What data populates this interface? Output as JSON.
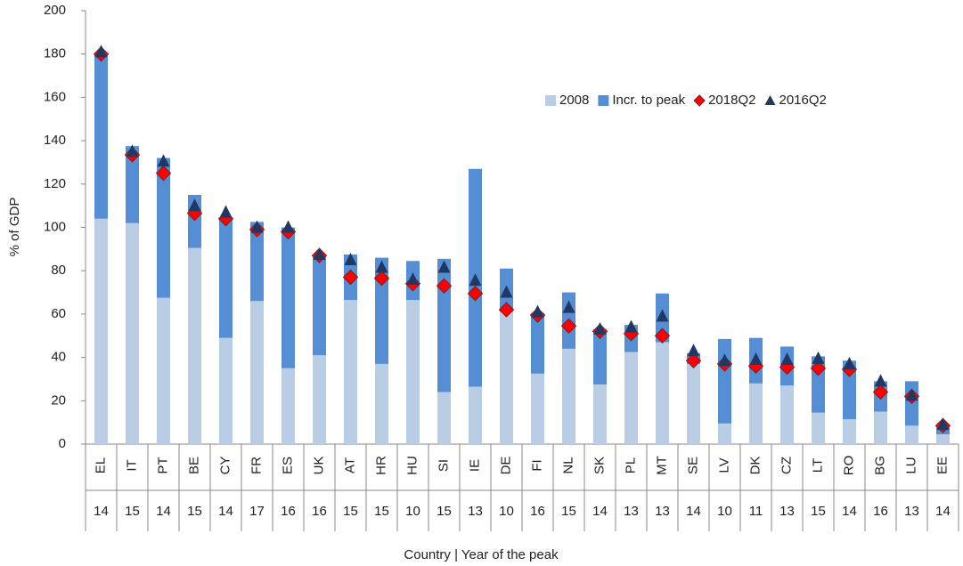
{
  "chart_data": {
    "type": "bar",
    "y_label": "% of GDP",
    "x_label": "Country | Year of the peak",
    "categories": [
      "EL",
      "IT",
      "PT",
      "BE",
      "CY",
      "FR",
      "ES",
      "UK",
      "AT",
      "HR",
      "HU",
      "SI",
      "IE",
      "DE",
      "FI",
      "NL",
      "SK",
      "PL",
      "MT",
      "SE",
      "LV",
      "DK",
      "CZ",
      "LT",
      "RO",
      "BG",
      "LU",
      "EE"
    ],
    "category_years": [
      "14",
      "15",
      "14",
      "15",
      "14",
      "17",
      "16",
      "16",
      "15",
      "15",
      "10",
      "15",
      "13",
      "10",
      "16",
      "15",
      "14",
      "13",
      "13",
      "14",
      "10",
      "11",
      "13",
      "15",
      "14",
      "16",
      "13",
      "14"
    ],
    "series": [
      {
        "name": "2008",
        "color": "#b9cde5",
        "kind": "stack",
        "values": [
          104,
          102,
          67.5,
          90.5,
          49,
          66,
          35,
          41,
          66.5,
          37,
          66.5,
          24,
          26.5,
          61,
          32.5,
          44,
          27.5,
          42.5,
          47,
          37,
          9.5,
          28,
          27,
          14.5,
          11.5,
          15,
          8.5,
          4.5
        ]
      },
      {
        "name": "Incr. to peak",
        "color": "#558ed5",
        "kind": "stack",
        "values": [
          76,
          35.5,
          64.5,
          24.5,
          55,
          36.5,
          65,
          46,
          21,
          49,
          18,
          61.5,
          100.5,
          20,
          28,
          26,
          25.5,
          12.5,
          22.5,
          5,
          39,
          21,
          18,
          26,
          27,
          14,
          20.5,
          4.5
        ]
      },
      {
        "name": "2018Q2",
        "color": "#ff0000",
        "kind": "diamond",
        "values": [
          180,
          133.5,
          125,
          106.5,
          104,
          99,
          98,
          87,
          77,
          76.5,
          74,
          73,
          69.5,
          62,
          59.5,
          54.5,
          52,
          51,
          50,
          38.5,
          37,
          36,
          35.5,
          35,
          34.5,
          24,
          22,
          8.5
        ]
      },
      {
        "name": "2016Q2",
        "color": "#1f3864",
        "kind": "triangle",
        "values": [
          181,
          135,
          130.5,
          110,
          107,
          100,
          100,
          87.5,
          85,
          81.5,
          76,
          81.5,
          75.5,
          70,
          61,
          63,
          53,
          54,
          59,
          43,
          38.5,
          39,
          39,
          39.5,
          37,
          29,
          22.5,
          9
        ]
      }
    ],
    "ylim": [
      0,
      200
    ],
    "yticks": [
      0,
      20,
      40,
      60,
      80,
      100,
      120,
      140,
      160,
      180,
      200
    ]
  }
}
